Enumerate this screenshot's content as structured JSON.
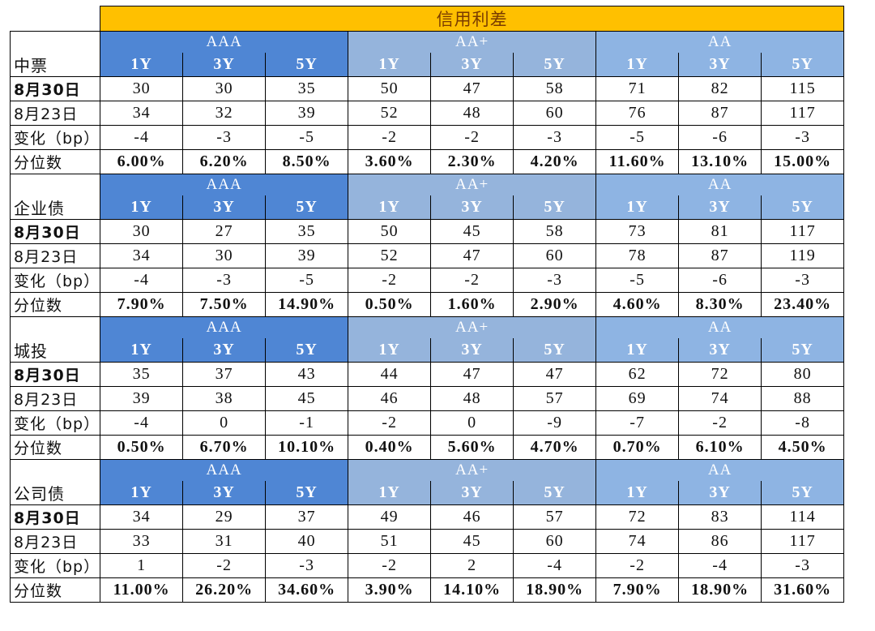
{
  "title": "信用利差",
  "grades": [
    "AAA",
    "AA+",
    "AA"
  ],
  "terms": [
    "1Y",
    "3Y",
    "5Y"
  ],
  "row_labels": [
    "8月30日",
    "8月23日",
    "变化（bp）",
    "分位数"
  ],
  "colors": {
    "title_bg": "#ffc000",
    "aaa_bg": "#4f86d4",
    "aa_plus_bg": "#95b4dc",
    "aa_bg": "#8eb4e3"
  },
  "sections": [
    {
      "name": "中票",
      "rows": [
        [
          "30",
          "30",
          "35",
          "50",
          "47",
          "58",
          "71",
          "82",
          "115"
        ],
        [
          "34",
          "32",
          "39",
          "52",
          "48",
          "60",
          "76",
          "87",
          "117"
        ],
        [
          "-4",
          "-3",
          "-5",
          "-2",
          "-2",
          "-3",
          "-5",
          "-6",
          "-3"
        ],
        [
          "6.00%",
          "6.20%",
          "8.50%",
          "3.60%",
          "2.30%",
          "4.20%",
          "11.60%",
          "13.10%",
          "15.00%"
        ]
      ]
    },
    {
      "name": "企业债",
      "rows": [
        [
          "30",
          "27",
          "35",
          "50",
          "45",
          "58",
          "73",
          "81",
          "117"
        ],
        [
          "34",
          "30",
          "39",
          "52",
          "47",
          "60",
          "78",
          "87",
          "119"
        ],
        [
          "-4",
          "-3",
          "-5",
          "-2",
          "-2",
          "-3",
          "-5",
          "-6",
          "-3"
        ],
        [
          "7.90%",
          "7.50%",
          "14.90%",
          "0.50%",
          "1.60%",
          "2.90%",
          "4.60%",
          "8.30%",
          "23.40%"
        ]
      ]
    },
    {
      "name": "城投",
      "rows": [
        [
          "35",
          "37",
          "43",
          "44",
          "47",
          "47",
          "62",
          "72",
          "80"
        ],
        [
          "39",
          "38",
          "45",
          "46",
          "48",
          "57",
          "69",
          "74",
          "88"
        ],
        [
          "-4",
          "0",
          "-1",
          "-2",
          "0",
          "-9",
          "-7",
          "-2",
          "-8"
        ],
        [
          "0.50%",
          "6.70%",
          "10.10%",
          "0.40%",
          "5.60%",
          "4.70%",
          "0.70%",
          "6.10%",
          "4.50%"
        ]
      ]
    },
    {
      "name": "公司债",
      "rows": [
        [
          "34",
          "29",
          "37",
          "49",
          "46",
          "57",
          "72",
          "83",
          "114"
        ],
        [
          "33",
          "31",
          "40",
          "51",
          "45",
          "60",
          "74",
          "86",
          "117"
        ],
        [
          "1",
          "-2",
          "-3",
          "-2",
          "2",
          "-4",
          "-2",
          "-4",
          "-3"
        ],
        [
          "11.00%",
          "26.20%",
          "34.60%",
          "3.90%",
          "14.10%",
          "18.90%",
          "7.90%",
          "18.90%",
          "31.60%"
        ]
      ]
    }
  ]
}
